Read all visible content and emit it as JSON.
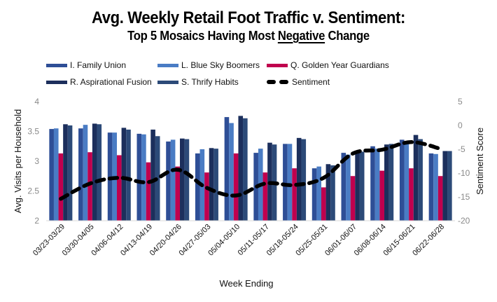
{
  "chart_data": {
    "type": "bar",
    "title": "Avg. Weekly Retail Foot Traffic v. Sentiment:",
    "subtitle": {
      "prefix": "Top 5 Mosaics Having Most ",
      "emphasis": "Negative",
      "suffix": " Change"
    },
    "xlabel": "Week Ending",
    "ylabel": "Avg. Visits per Household",
    "y2label": "Sentiment Score",
    "ylim": [
      2,
      4
    ],
    "y2lim": [
      -20,
      5
    ],
    "yticks": [
      "2",
      "2.5",
      "3",
      "3.5",
      "4"
    ],
    "y2ticks": [
      "-20",
      "-15",
      "-10",
      "-5",
      "0",
      "5"
    ],
    "grid": false,
    "legend_position": "top",
    "categories": [
      "03/23-03/29",
      "03/30-04/05",
      "04/06-04/12",
      "04/13-04/19",
      "04/20-04/26",
      "04/27-05/03",
      "05/04-05/10",
      "05/11-05/17",
      "05/18-05/24",
      "05/25-05/31",
      "06/01-06/07",
      "06/08-06/14",
      "06/15-06/21",
      "06/22-06/28"
    ],
    "series": [
      {
        "name": "I. Family Union",
        "type": "bar",
        "axis": "left",
        "color": "#2E4E96",
        "values": [
          3.54,
          3.55,
          3.48,
          3.46,
          3.33,
          3.13,
          3.74,
          3.14,
          3.29,
          2.88,
          3.14,
          3.25,
          3.36,
          3.13
        ]
      },
      {
        "name": "L. Blue Sky Boomers",
        "type": "bar",
        "axis": "left",
        "color": "#4A7CC4",
        "values": [
          3.55,
          3.61,
          3.48,
          3.45,
          3.36,
          3.2,
          3.64,
          3.21,
          3.29,
          2.91,
          3.11,
          3.21,
          3.31,
          3.12
        ]
      },
      {
        "name": "Q. Golden Year Guardians",
        "type": "bar",
        "axis": "left",
        "color": "#C0004E",
        "values": [
          3.13,
          3.15,
          3.1,
          2.98,
          2.91,
          2.81,
          3.13,
          2.81,
          2.88,
          2.56,
          2.75,
          2.84,
          2.88,
          2.75
        ]
      },
      {
        "name": "R. Aspirational Fusion",
        "type": "bar",
        "axis": "left",
        "color": "#1C2F5C",
        "values": [
          3.62,
          3.63,
          3.56,
          3.53,
          3.38,
          3.22,
          3.76,
          3.31,
          3.39,
          2.95,
          3.16,
          3.28,
          3.44,
          3.17
        ]
      },
      {
        "name": "S. Thrify Habits",
        "type": "bar",
        "axis": "left",
        "color": "#2C4A78",
        "values": [
          3.6,
          3.62,
          3.53,
          3.42,
          3.37,
          3.21,
          3.72,
          3.28,
          3.37,
          2.93,
          3.16,
          3.29,
          3.37,
          3.17
        ]
      },
      {
        "name": "Sentiment",
        "type": "line",
        "axis": "right",
        "color": "#000000",
        "style": "dashed",
        "values": [
          -15.4,
          -12.2,
          -11.0,
          -11.9,
          -9.3,
          -13.1,
          -14.7,
          -12.2,
          -12.5,
          -11.0,
          -5.9,
          -5.1,
          -3.5,
          -4.9
        ]
      }
    ]
  }
}
